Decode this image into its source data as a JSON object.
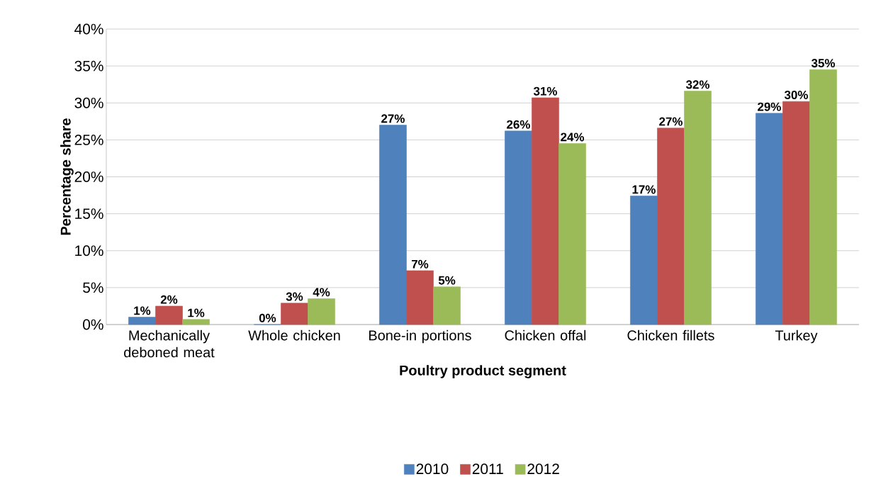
{
  "chart_data": {
    "type": "bar",
    "xlabel": "Poultry product segment",
    "ylabel": "Percentage share",
    "categories": [
      "Mechanically deboned meat",
      "Whole chicken",
      "Bone-in portions",
      "Chicken offal",
      "Chicken fillets",
      "Turkey"
    ],
    "series": [
      {
        "name": "2010",
        "color": "#4f81bd",
        "values": [
          1.0,
          0,
          27.0,
          26.2,
          17.4,
          28.6
        ],
        "value_labels": [
          "1%",
          "0%",
          "27%",
          "26%",
          "17%",
          "29%"
        ]
      },
      {
        "name": "2011",
        "color": "#c0504d",
        "values": [
          2.5,
          2.9,
          7.3,
          30.7,
          26.6,
          30.2
        ],
        "value_labels": [
          "2%",
          "3%",
          "7%",
          "31%",
          "27%",
          "30%"
        ]
      },
      {
        "name": "2012",
        "color": "#9bbb59",
        "values": [
          0.7,
          3.5,
          5.1,
          24.5,
          31.6,
          34.5
        ],
        "value_labels": [
          "1%",
          "4%",
          "5%",
          "24%",
          "32%",
          "35%"
        ]
      }
    ],
    "ylim": [
      0,
      40
    ],
    "yticks": [
      {
        "value": 0,
        "label": "0%"
      },
      {
        "value": 5,
        "label": "5%"
      },
      {
        "value": 10,
        "label": "10%"
      },
      {
        "value": 15,
        "label": "15%"
      },
      {
        "value": 20,
        "label": "20%"
      },
      {
        "value": 25,
        "label": "25%"
      },
      {
        "value": 30,
        "label": "30%"
      },
      {
        "value": 35,
        "label": "35%"
      },
      {
        "value": 40,
        "label": "40%"
      }
    ],
    "grid": "y",
    "legend": "bottom"
  }
}
